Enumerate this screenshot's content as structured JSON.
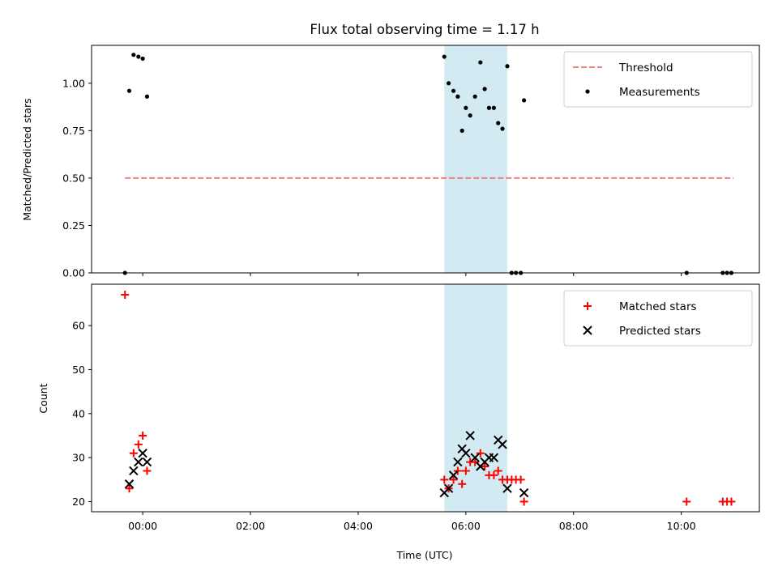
{
  "chart_data": {
    "title": "Flux total observing time = 1.17 h",
    "xlabel": "Time (UTC)",
    "xlim": [
      -0.95,
      11.45
    ],
    "x_ticks": [
      {
        "value": 0,
        "label": "00:00"
      },
      {
        "value": 2,
        "label": "02:00"
      },
      {
        "value": 4,
        "label": "04:00"
      },
      {
        "value": 6,
        "label": "06:00"
      },
      {
        "value": 8,
        "label": "08:00"
      },
      {
        "value": 10,
        "label": "10:00"
      }
    ],
    "observing_window": {
      "start": 5.6,
      "end": 6.77,
      "color": "#add8e6"
    },
    "panels": [
      {
        "type": "scatter",
        "ylabel": "Matched/Predicted stars",
        "ylim": [
          0,
          1.2
        ],
        "y_ticks": [
          {
            "value": 0,
            "label": "0.00"
          },
          {
            "value": 0.25,
            "label": "0.25"
          },
          {
            "value": 0.5,
            "label": "0.50"
          },
          {
            "value": 0.75,
            "label": "0.75"
          },
          {
            "value": 1.0,
            "label": "1.00"
          }
        ],
        "legend": "top-right",
        "threshold": {
          "name": "Threshold",
          "value": 0.5,
          "x_range": [
            -0.33,
            10.97
          ],
          "color": "#f08080"
        },
        "series": [
          {
            "name": "Measurements",
            "marker": "dot",
            "color": "#000000",
            "points": [
              [
                -0.33,
                0.0
              ],
              [
                -0.25,
                0.96
              ],
              [
                -0.17,
                1.15
              ],
              [
                -0.08,
                1.14
              ],
              [
                0.0,
                1.13
              ],
              [
                0.08,
                0.93
              ],
              [
                5.6,
                1.14
              ],
              [
                5.68,
                1.0
              ],
              [
                5.77,
                0.96
              ],
              [
                5.85,
                0.93
              ],
              [
                5.93,
                0.75
              ],
              [
                6.0,
                0.87
              ],
              [
                6.08,
                0.83
              ],
              [
                6.17,
                0.93
              ],
              [
                6.27,
                1.11
              ],
              [
                6.35,
                0.97
              ],
              [
                6.43,
                0.87
              ],
              [
                6.52,
                0.87
              ],
              [
                6.6,
                0.79
              ],
              [
                6.68,
                0.76
              ],
              [
                6.77,
                1.09
              ],
              [
                6.85,
                0.0
              ],
              [
                6.93,
                0.0
              ],
              [
                7.02,
                0.0
              ],
              [
                7.08,
                0.91
              ],
              [
                10.1,
                0.0
              ],
              [
                10.77,
                0.0
              ],
              [
                10.85,
                0.0
              ],
              [
                10.93,
                0.0
              ]
            ]
          }
        ]
      },
      {
        "type": "scatter",
        "ylabel": "Count",
        "ylim": [
          17.7,
          69.4
        ],
        "y_ticks": [
          {
            "value": 20,
            "label": "20"
          },
          {
            "value": 30,
            "label": "30"
          },
          {
            "value": 40,
            "label": "40"
          },
          {
            "value": 50,
            "label": "50"
          },
          {
            "value": 60,
            "label": "60"
          }
        ],
        "legend": "top-right",
        "series": [
          {
            "name": "Matched stars",
            "marker": "plus",
            "color": "#ff0000",
            "points": [
              [
                -0.33,
                67
              ],
              [
                -0.25,
                23
              ],
              [
                -0.17,
                31
              ],
              [
                -0.08,
                33
              ],
              [
                0.0,
                35
              ],
              [
                0.08,
                27
              ],
              [
                5.6,
                25
              ],
              [
                5.68,
                23
              ],
              [
                5.77,
                25
              ],
              [
                5.85,
                27
              ],
              [
                5.93,
                24
              ],
              [
                6.0,
                27
              ],
              [
                6.08,
                29
              ],
              [
                6.17,
                29
              ],
              [
                6.27,
                31
              ],
              [
                6.35,
                28
              ],
              [
                6.43,
                26
              ],
              [
                6.52,
                26
              ],
              [
                6.6,
                27
              ],
              [
                6.68,
                25
              ],
              [
                6.77,
                25
              ],
              [
                6.85,
                25
              ],
              [
                6.93,
                25
              ],
              [
                7.02,
                25
              ],
              [
                7.08,
                20
              ],
              [
                10.1,
                20
              ],
              [
                10.77,
                20
              ],
              [
                10.85,
                20
              ],
              [
                10.93,
                20
              ]
            ]
          },
          {
            "name": "Predicted stars",
            "marker": "x",
            "color": "#000000",
            "points": [
              [
                -0.25,
                24
              ],
              [
                -0.17,
                27
              ],
              [
                -0.08,
                29
              ],
              [
                0.0,
                31
              ],
              [
                0.08,
                29
              ],
              [
                5.6,
                22
              ],
              [
                5.68,
                23
              ],
              [
                5.77,
                26
              ],
              [
                5.85,
                29
              ],
              [
                5.93,
                32
              ],
              [
                6.0,
                31
              ],
              [
                6.08,
                35
              ],
              [
                6.17,
                30
              ],
              [
                6.27,
                28
              ],
              [
                6.35,
                29
              ],
              [
                6.43,
                30
              ],
              [
                6.52,
                30
              ],
              [
                6.6,
                34
              ],
              [
                6.68,
                33
              ],
              [
                6.77,
                23
              ],
              [
                7.08,
                22
              ]
            ]
          }
        ]
      }
    ]
  }
}
